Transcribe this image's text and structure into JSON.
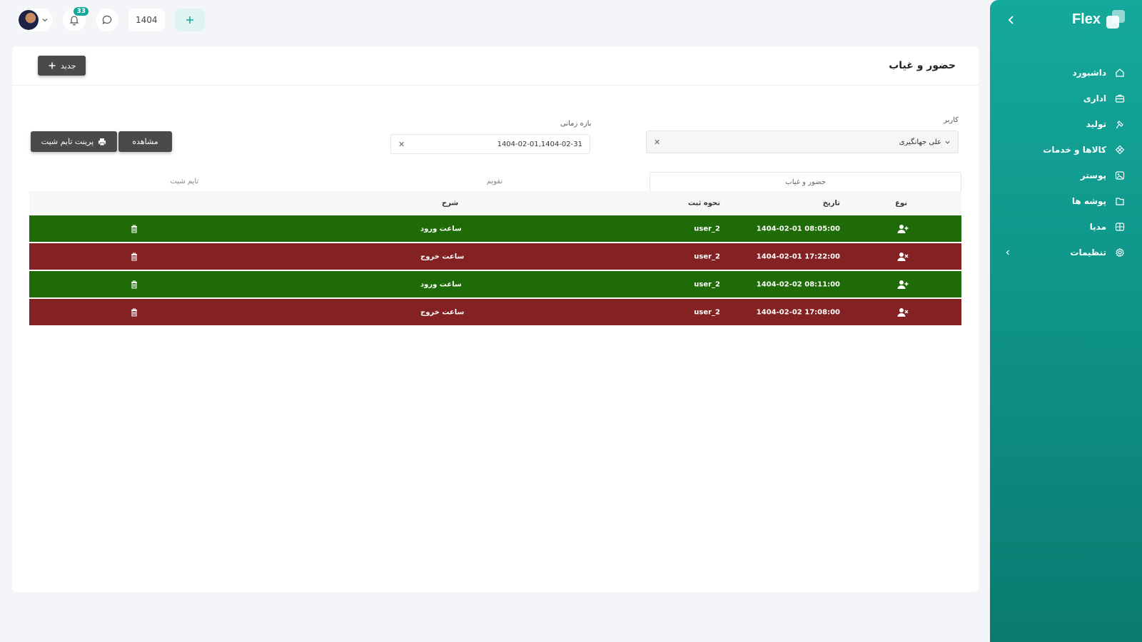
{
  "brand": {
    "name": "Flex"
  },
  "sidebar": {
    "items": [
      {
        "label": "داشبورد",
        "icon": "home-icon"
      },
      {
        "label": "اداری",
        "icon": "briefcase-icon"
      },
      {
        "label": "تولید",
        "icon": "production-icon"
      },
      {
        "label": "کالاها و خدمات",
        "icon": "products-icon"
      },
      {
        "label": "پوستر",
        "icon": "poster-icon"
      },
      {
        "label": "پوشه ها",
        "icon": "folder-icon"
      },
      {
        "label": "مدیا",
        "icon": "media-icon"
      },
      {
        "label": "تنظیمات",
        "icon": "gear-icon"
      }
    ]
  },
  "topbar": {
    "notifications_count": "33",
    "year": "1404"
  },
  "page": {
    "title": "حضور و غیاب",
    "new_label": "جدید"
  },
  "filters": {
    "user_label": "کاربر",
    "user_value": "علی جهانگیری",
    "range_label": "بازه زمانی",
    "range_value": "1404-02-01,1404-02-31",
    "view_label": "مشاهده",
    "print_label": "پرینت تایم شیت"
  },
  "tabs": [
    {
      "label": "حضور و غیاب",
      "active": true
    },
    {
      "label": "تقویم",
      "active": false
    },
    {
      "label": "تایم شیت",
      "active": false
    }
  ],
  "table": {
    "columns": {
      "type": "نوع",
      "date": "تاریخ",
      "method": "نحوه ثبت",
      "desc": "شرح"
    },
    "rows": [
      {
        "kind": "in",
        "date": "1404-02-01 08:05:00",
        "method": "user_2",
        "desc": "ساعت ورود"
      },
      {
        "kind": "out",
        "date": "1404-02-01 17:22:00",
        "method": "user_2",
        "desc": "ساعت خروج"
      },
      {
        "kind": "in",
        "date": "1404-02-02 08:11:00",
        "method": "user_2",
        "desc": "ساعت ورود"
      },
      {
        "kind": "out",
        "date": "1404-02-02 17:08:00",
        "method": "user_2",
        "desc": "ساعت خروج"
      }
    ]
  },
  "colors": {
    "sidebar": "#14a99c",
    "row_in": "#1e6b07",
    "row_out": "#842122",
    "dark_button": "#4a4a4a"
  }
}
